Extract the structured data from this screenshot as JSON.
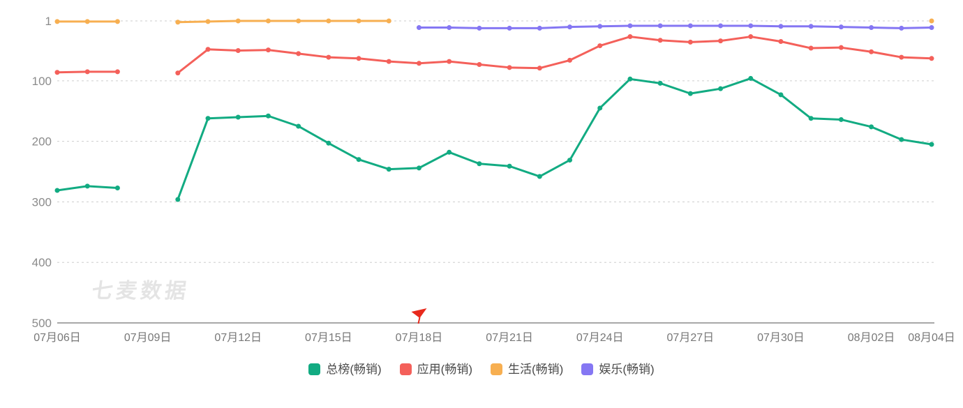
{
  "watermark": "七麦数据",
  "colors": {
    "green": "#12AB82",
    "red": "#F4605A",
    "orange": "#F7AF51",
    "purple": "#8577F3",
    "grid_line": "#CDCDCD",
    "axis_line": "#A8A8A8",
    "y_tick_text": "#8B8B8B",
    "x_tick_text": "#777777",
    "legend_text": "#4A4A4A",
    "flag": "#E8291C",
    "watermark_text": "#E4E4E4"
  },
  "chart_data": {
    "type": "line",
    "title": "",
    "x": [
      "07月06日",
      "07月07日",
      "07月08日",
      "07月09日",
      "07月10日",
      "07月11日",
      "07月12日",
      "07月13日",
      "07月14日",
      "07月15日",
      "07月16日",
      "07月17日",
      "07月18日",
      "07月19日",
      "07月20日",
      "07月21日",
      "07月22日",
      "07月23日",
      "07月24日",
      "07月25日",
      "07月26日",
      "07月27日",
      "07月28日",
      "07月29日",
      "07月30日",
      "07月31日",
      "08月01日",
      "08月02日",
      "08月03日",
      "08月04日"
    ],
    "x_tick_indices": [
      0,
      3,
      6,
      9,
      12,
      15,
      18,
      21,
      24,
      27,
      29
    ],
    "x_tick_labels": [
      "07月06日",
      "07月09日",
      "07月12日",
      "07月15日",
      "07月18日",
      "07月21日",
      "07月24日",
      "07月27日",
      "07月30日",
      "08月02日",
      "08月04日"
    ],
    "y_axis": {
      "inverted": true,
      "min": 1,
      "max": 500,
      "ticks": [
        1,
        100,
        200,
        300,
        400,
        500
      ]
    },
    "grid": "horizontal-dashed",
    "legend_position": "bottom",
    "flag_marker_date": "07月18日",
    "flag_marker_index": 12,
    "series": [
      {
        "name": "总榜(畅销)",
        "color": "#12AB82",
        "values": [
          281,
          274,
          277,
          null,
          296,
          162,
          160,
          158,
          175,
          203,
          230,
          246,
          244,
          218,
          237,
          241,
          258,
          231,
          145,
          97,
          104,
          121,
          113,
          96,
          123,
          162,
          164,
          176,
          197,
          205
        ]
      },
      {
        "name": "应用(畅销)",
        "color": "#F4605A",
        "values": [
          86,
          85,
          85,
          null,
          87,
          48,
          50,
          49,
          55,
          61,
          63,
          68,
          71,
          68,
          73,
          78,
          79,
          66,
          42,
          27,
          33,
          36,
          34,
          27,
          35,
          46,
          45,
          52,
          61,
          63
        ]
      },
      {
        "name": "生活(畅销)",
        "color": "#F7AF51",
        "values": [
          2,
          2,
          2,
          null,
          3,
          2,
          1,
          1,
          1,
          1,
          1,
          1,
          null,
          null,
          null,
          null,
          null,
          null,
          null,
          null,
          null,
          null,
          null,
          null,
          null,
          null,
          null,
          null,
          null,
          1
        ]
      },
      {
        "name": "娱乐(畅销)",
        "color": "#8577F3",
        "values": [
          null,
          null,
          null,
          null,
          null,
          null,
          null,
          null,
          null,
          null,
          null,
          null,
          12,
          12,
          13,
          13,
          13,
          11,
          10,
          9,
          9,
          9,
          9,
          9,
          10,
          10,
          11,
          12,
          13,
          12
        ]
      }
    ]
  }
}
